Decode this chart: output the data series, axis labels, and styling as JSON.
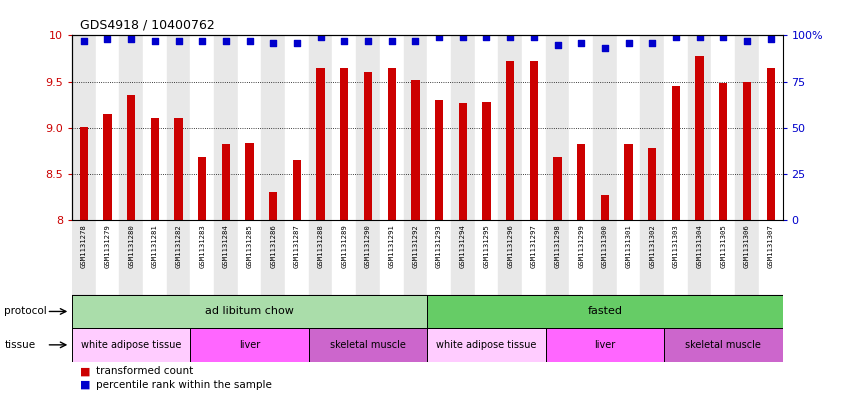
{
  "title": "GDS4918 / 10400762",
  "samples": [
    "GSM1131278",
    "GSM1131279",
    "GSM1131280",
    "GSM1131281",
    "GSM1131282",
    "GSM1131283",
    "GSM1131284",
    "GSM1131285",
    "GSM1131286",
    "GSM1131287",
    "GSM1131288",
    "GSM1131289",
    "GSM1131290",
    "GSM1131291",
    "GSM1131292",
    "GSM1131293",
    "GSM1131294",
    "GSM1131295",
    "GSM1131296",
    "GSM1131297",
    "GSM1131298",
    "GSM1131299",
    "GSM1131300",
    "GSM1131301",
    "GSM1131302",
    "GSM1131303",
    "GSM1131304",
    "GSM1131305",
    "GSM1131306",
    "GSM1131307"
  ],
  "bar_values": [
    9.01,
    9.15,
    9.35,
    9.1,
    9.1,
    8.68,
    8.82,
    8.84,
    8.3,
    8.65,
    9.65,
    9.65,
    9.6,
    9.65,
    9.52,
    9.3,
    9.27,
    9.28,
    9.72,
    9.72,
    8.68,
    8.82,
    8.27,
    8.82,
    8.78,
    9.45,
    9.78,
    9.48,
    9.5,
    9.65
  ],
  "percentile_values": [
    97,
    98,
    98,
    97,
    97,
    97,
    97,
    97,
    96,
    96,
    99,
    97,
    97,
    97,
    97,
    99,
    99,
    99,
    99,
    99,
    95,
    96,
    93,
    96,
    96,
    99,
    99,
    99,
    97,
    98
  ],
  "ylim_left": [
    8.0,
    10.0
  ],
  "ylim_right": [
    0,
    100
  ],
  "yticks_left": [
    8.0,
    8.5,
    9.0,
    9.5,
    10.0
  ],
  "yticks_right": [
    0,
    25,
    50,
    75,
    100
  ],
  "bar_color": "#cc0000",
  "percentile_color": "#0000cc",
  "grid_color": "#000000",
  "col_bg_even": "#e8e8e8",
  "col_bg_odd": "#ffffff",
  "protocol_groups": [
    {
      "label": "ad libitum chow",
      "start": 0,
      "end": 14,
      "color": "#aaddaa"
    },
    {
      "label": "fasted",
      "start": 15,
      "end": 29,
      "color": "#66cc66"
    }
  ],
  "tissue_groups": [
    {
      "label": "white adipose tissue",
      "start": 0,
      "end": 4,
      "color": "#ffccff"
    },
    {
      "label": "liver",
      "start": 5,
      "end": 9,
      "color": "#ff66ff"
    },
    {
      "label": "skeletal muscle",
      "start": 10,
      "end": 14,
      "color": "#cc66cc"
    },
    {
      "label": "white adipose tissue",
      "start": 15,
      "end": 19,
      "color": "#ffccff"
    },
    {
      "label": "liver",
      "start": 20,
      "end": 24,
      "color": "#ff66ff"
    },
    {
      "label": "skeletal muscle",
      "start": 25,
      "end": 29,
      "color": "#cc66cc"
    }
  ]
}
